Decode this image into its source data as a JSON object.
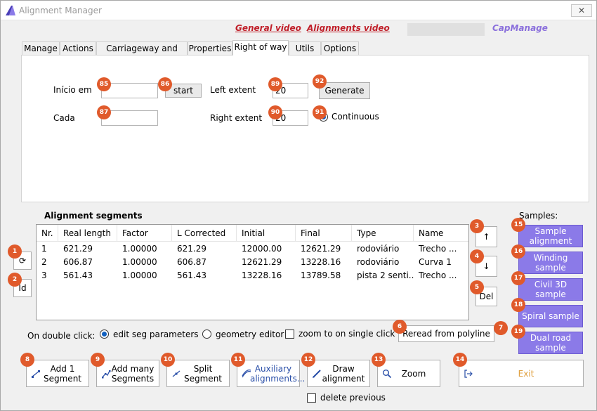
{
  "window": {
    "title": "Alignment Manager",
    "close": "✕"
  },
  "header": {
    "general_video": "General video",
    "alignments_video": "Alignments video",
    "capmanage": "CapManage",
    "accent_color": "#c0202a",
    "cap_color": "#8a6fdc"
  },
  "tabs": [
    "Manage",
    "Actions",
    "Carriageway and lanes",
    "Properties",
    "Right of way",
    "Utils",
    "Options"
  ],
  "active_tab": "Right of way",
  "right_of_way": {
    "inicio_label": "Início em",
    "inicio_value": "",
    "start_button": "start",
    "cada_label": "Cada",
    "cada_value": "",
    "left_extent_label": "Left extent",
    "left_extent_value": "20",
    "right_extent_label": "Right extent",
    "right_extent_value": "20",
    "generate_button": "Generate",
    "continuous_label": "Continuous"
  },
  "segments": {
    "title": "Alignment segments",
    "columns": [
      "Nr.",
      "Real length",
      "Factor",
      "L Corrected",
      "Initial",
      "Final",
      "Type",
      "Name"
    ],
    "rows": [
      [
        "1",
        "621.29",
        "1.00000",
        "621.29",
        "12000.00",
        "12621.29",
        "rodoviário",
        "Trecho ..."
      ],
      [
        "2",
        "606.87",
        "1.00000",
        "606.87",
        "12621.29",
        "13228.16",
        "rodoviário",
        "Curva 1"
      ],
      [
        "3",
        "561.43",
        "1.00000",
        "561.43",
        "13228.16",
        "13789.58",
        "pista 2 senti...",
        "Trecho ..."
      ]
    ]
  },
  "side_buttons": {
    "refresh": "⟳",
    "id": "Id",
    "up": "↑",
    "down": "↓",
    "del": "Del"
  },
  "samples": {
    "label": "Samples:",
    "items": [
      "Sample alignment",
      "Winding sample",
      "Civil 3D sample",
      "Spiral sample",
      "Dual road sample"
    ],
    "color": "#8b7ae8"
  },
  "double_click": {
    "label": "On double click:",
    "edit_seg": "edit seg parameters",
    "geometry_editor": "geometry editor",
    "zoom_single": "zoom to on single click"
  },
  "reread_button": "Reread from polyline",
  "bottom_buttons": {
    "add1": "Add 1 Segment",
    "add_many": "Add many Segments",
    "split": "Split Segment",
    "auxiliary": "Auxiliary alignments...",
    "draw": "Draw alignment",
    "zoom": "Zoom",
    "exit": "Exit"
  },
  "delete_previous": "delete previous",
  "badges": [
    "1",
    "2",
    "3",
    "4",
    "5",
    "6",
    "7",
    "8",
    "9",
    "10",
    "11",
    "12",
    "13",
    "14",
    "15",
    "16",
    "17",
    "18",
    "19",
    "85",
    "86",
    "87",
    "89",
    "90",
    "91",
    "92"
  ],
  "badge_color": "#e05a2b"
}
